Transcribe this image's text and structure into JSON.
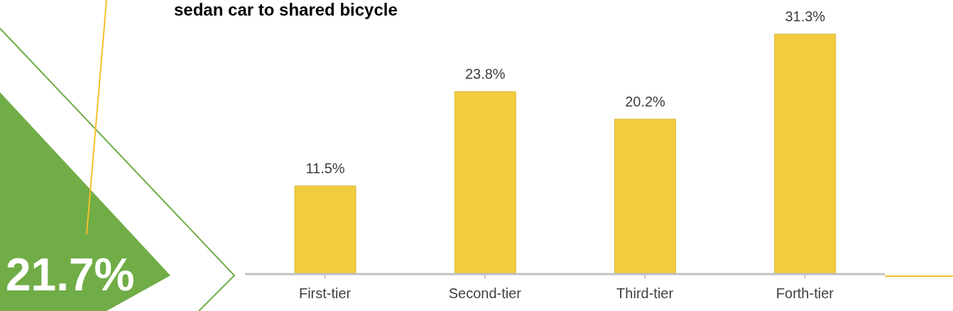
{
  "chart_data": {
    "type": "bar",
    "title": "sedan car to shared bicycle",
    "categories": [
      "First-tier",
      "Second-tier",
      "Third-tier",
      "Forth-tier"
    ],
    "values": [
      11.5,
      23.8,
      20.2,
      31.3
    ],
    "value_labels": [
      "11.5%",
      "23.8%",
      "20.2%",
      "31.3%"
    ],
    "color": "#f2cc3c",
    "annotations": [
      "21.7%"
    ]
  }
}
